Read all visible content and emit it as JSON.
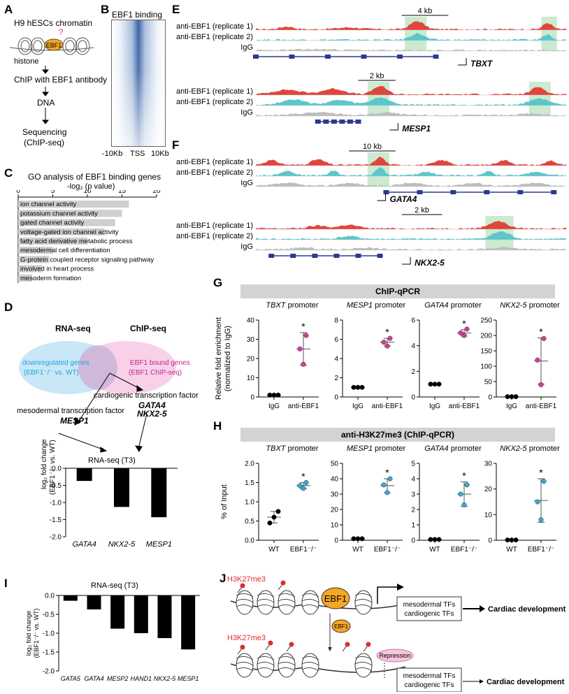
{
  "panels": {
    "A": "A",
    "B": "B",
    "C": "C",
    "D": "D",
    "E": "E",
    "F": "F",
    "G": "G",
    "H": "H",
    "I": "I",
    "J": "J"
  },
  "panelA": {
    "title": "H9 hESCs chromatin",
    "question": "?",
    "protein": "EBF1",
    "histone": "histone",
    "step1": "ChIP with EBF1 antibody",
    "step2": "DNA",
    "step3": "Sequencing",
    "step3b": "(ChIP-seq)"
  },
  "panelB": {
    "title": "EBF1 binding",
    "ticks": [
      "-10Kb",
      "TSS",
      "10Kb"
    ]
  },
  "panelC": {
    "title": "GO analysis of EBF1 binding genes",
    "axis_title": "-log₂ (p value)",
    "ticks": [
      "0",
      "5",
      "10",
      "15",
      "20"
    ],
    "terms": [
      "ion channel activity",
      "potassium channel activity",
      "gated channel activity",
      "voltage-gated ion channel activity",
      "fatty acid derivative metabolic process",
      "mesodermal cell differentiation",
      "G-protein coupled receptor signaling pathway",
      "involved in heart process",
      "mesoderm formation"
    ]
  },
  "panelD": {
    "rnaseq": "RNA-seq",
    "chipseq": "ChIP-seq",
    "down_line1": "downregulated genes",
    "down_line2": "(EBF1⁻/⁻ vs. WT)",
    "bound_line1": "EBF1 bound genes",
    "bound_line2": "(EBF1 ChIP-seq)",
    "cardio_label": "cardiogenic transcription factor",
    "cardio_g1": "GATA4",
    "cardio_g2": "NKX2-5",
    "meso_label": "mesodermal transcription factor",
    "meso_g1": "MESP1",
    "chart_title": "RNA-seq (T3)",
    "ylabel1": "log₂ fold change",
    "ylabel2": "(EBF1⁻/⁻ vs. WT)",
    "yticks": [
      "0.0",
      "-0.5",
      "-1.0",
      "-1.5",
      "-2.0"
    ]
  },
  "panelE": {
    "track1": "anti-EBF1 (replicate 1)",
    "track2": "anti-EBF1 (replicate 2)",
    "track3": "IgG",
    "gene1": "TBXT",
    "scale1": "4 kb",
    "gene2": "MESP1",
    "scale2": "2 kb"
  },
  "panelF": {
    "gene1": "GATA4",
    "scale1": "10 kb",
    "gene2": "NKX2-5",
    "scale2": "2 kb"
  },
  "panelG": {
    "header": "ChIP-qPCR",
    "ylabel1": "Relative fold enrichment",
    "ylabel2": "(normalized to IgG)",
    "xcat": [
      "IgG",
      "anti-EBF1"
    ],
    "star": "*",
    "promoter_word": "promoter"
  },
  "panelH": {
    "header": "anti-H3K27me3 (ChIP-qPCR)",
    "ylabel": "% of Input",
    "xcat": [
      "WT",
      "EBF1⁻/⁻"
    ]
  },
  "panelI": {
    "title": "RNA-seq (T3)",
    "ylabel1": "log₂ fold change",
    "ylabel2": "(EBF1⁻/⁻ vs. WT)",
    "yticks": [
      "0.0",
      "-0.5",
      "-1.0",
      "-1.5",
      "-2.0"
    ]
  },
  "panelJ": {
    "mark": "H3K27me3",
    "protein": "EBF1",
    "tf1": "mesodermal TFs",
    "tf2": "cardiogenic TFs",
    "outcome": "Cardiac development",
    "repression": "Repression"
  },
  "chart_data": [
    {
      "id": "C",
      "type": "bar",
      "orientation": "horizontal",
      "title": "GO analysis of EBF1 binding genes",
      "xlabel": "-log2 (p value)",
      "xlim": [
        0,
        20
      ],
      "categories": [
        "ion channel activity",
        "potassium channel activity",
        "gated channel activity",
        "voltage-gated ion channel activity",
        "fatty acid derivative metabolic process",
        "mesodermal cell differentiation",
        "G-protein coupled receptor signaling pathway",
        "involved in heart process",
        "mesoderm formation"
      ],
      "values": [
        16,
        15,
        14,
        12.5,
        10,
        5,
        4.5,
        3.5,
        2
      ]
    },
    {
      "id": "D",
      "type": "bar",
      "title": "RNA-seq (T3)",
      "ylabel": "log2 fold change (EBF1-/- vs. WT)",
      "ylim": [
        -2,
        0
      ],
      "categories": [
        "GATA4",
        "NKX2-5",
        "MESP1"
      ],
      "values": [
        -0.37,
        -1.13,
        -1.43
      ]
    },
    {
      "id": "G",
      "type": "scatter",
      "title": "ChIP-qPCR",
      "ylabel": "Relative fold enrichment (normalized to IgG)",
      "categories": [
        "IgG",
        "anti-EBF1"
      ],
      "subplots": [
        {
          "gene": "TBXT",
          "ylim": [
            0,
            40
          ],
          "yticks": [
            0,
            10,
            20,
            30,
            40
          ],
          "points": [
            [
              1,
              1,
              1
            ],
            [
              17,
              25,
              32
            ]
          ],
          "mean": [
            1,
            25
          ],
          "err": [
            0,
            8.5
          ]
        },
        {
          "gene": "MESP1",
          "ylim": [
            0,
            8
          ],
          "yticks": [
            0,
            2,
            4,
            6,
            8
          ],
          "points": [
            [
              1,
              1,
              1
            ],
            [
              5.3,
              5.7,
              6.1
            ]
          ],
          "mean": [
            1,
            5.7
          ],
          "err": [
            0,
            0.4
          ]
        },
        {
          "gene": "GATA4",
          "ylim": [
            0,
            6
          ],
          "yticks": [
            0,
            2,
            4,
            6
          ],
          "points": [
            [
              1,
              1,
              1
            ],
            [
              4.8,
              5,
              5.3
            ]
          ],
          "mean": [
            1,
            5
          ],
          "err": [
            0,
            0.25
          ]
        },
        {
          "gene": "NKX2-5",
          "ylim": [
            0,
            250
          ],
          "yticks": [
            0,
            50,
            100,
            150,
            200,
            250
          ],
          "points": [
            [
              1,
              1,
              1
            ],
            [
              40,
              120,
              190
            ]
          ],
          "mean": [
            1,
            117
          ],
          "err": [
            0,
            75
          ]
        }
      ]
    },
    {
      "id": "H",
      "type": "scatter",
      "title": "anti-H3K27me3 (ChIP-qPCR)",
      "ylabel": "% of Input",
      "categories": [
        "WT",
        "EBF1-/-"
      ],
      "subplots": [
        {
          "gene": "TBXT",
          "ylim": [
            0,
            2
          ],
          "yticks": [
            0,
            0.5,
            1,
            1.5,
            2
          ],
          "ytickfmt": 1,
          "points": [
            [
              0.45,
              0.6,
              0.75
            ],
            [
              1.35,
              1.42,
              1.5
            ]
          ],
          "mean": [
            0.6,
            1.42
          ],
          "err": [
            0.15,
            0.08
          ]
        },
        {
          "gene": "MESP1",
          "ylim": [
            0,
            50
          ],
          "yticks": [
            0,
            10,
            20,
            30,
            40,
            50
          ],
          "points": [
            [
              1,
              1,
              1
            ],
            [
              31,
              36,
              40
            ]
          ],
          "mean": [
            1,
            35.5
          ],
          "err": [
            0,
            4.5
          ]
        },
        {
          "gene": "GATA4",
          "ylim": [
            0,
            5
          ],
          "yticks": [
            0,
            1,
            2,
            3,
            4,
            5
          ],
          "points": [
            [
              0.05,
              0.05,
              0.05
            ],
            [
              2.3,
              3,
              3.6
            ]
          ],
          "mean": [
            0.05,
            3
          ],
          "err": [
            0,
            0.8
          ]
        },
        {
          "gene": "NKX2-5",
          "ylim": [
            0,
            30
          ],
          "yticks": [
            0,
            10,
            20,
            30
          ],
          "points": [
            [
              0.1,
              0.1,
              0.1
            ],
            [
              8,
              15,
              23
            ]
          ],
          "mean": [
            0.1,
            15.5
          ],
          "err": [
            0,
            8.5
          ]
        }
      ]
    },
    {
      "id": "I",
      "type": "bar",
      "title": "RNA-seq (T3)",
      "ylabel": "log2 fold change (EBF1-/- vs. WT)",
      "ylim": [
        -2,
        0
      ],
      "categories": [
        "GATA5",
        "GATA4",
        "MESP2",
        "HAND1",
        "NKX2-5",
        "MESP1"
      ],
      "values": [
        -0.14,
        -0.37,
        -0.88,
        -1.0,
        -1.13,
        -1.43
      ]
    }
  ]
}
